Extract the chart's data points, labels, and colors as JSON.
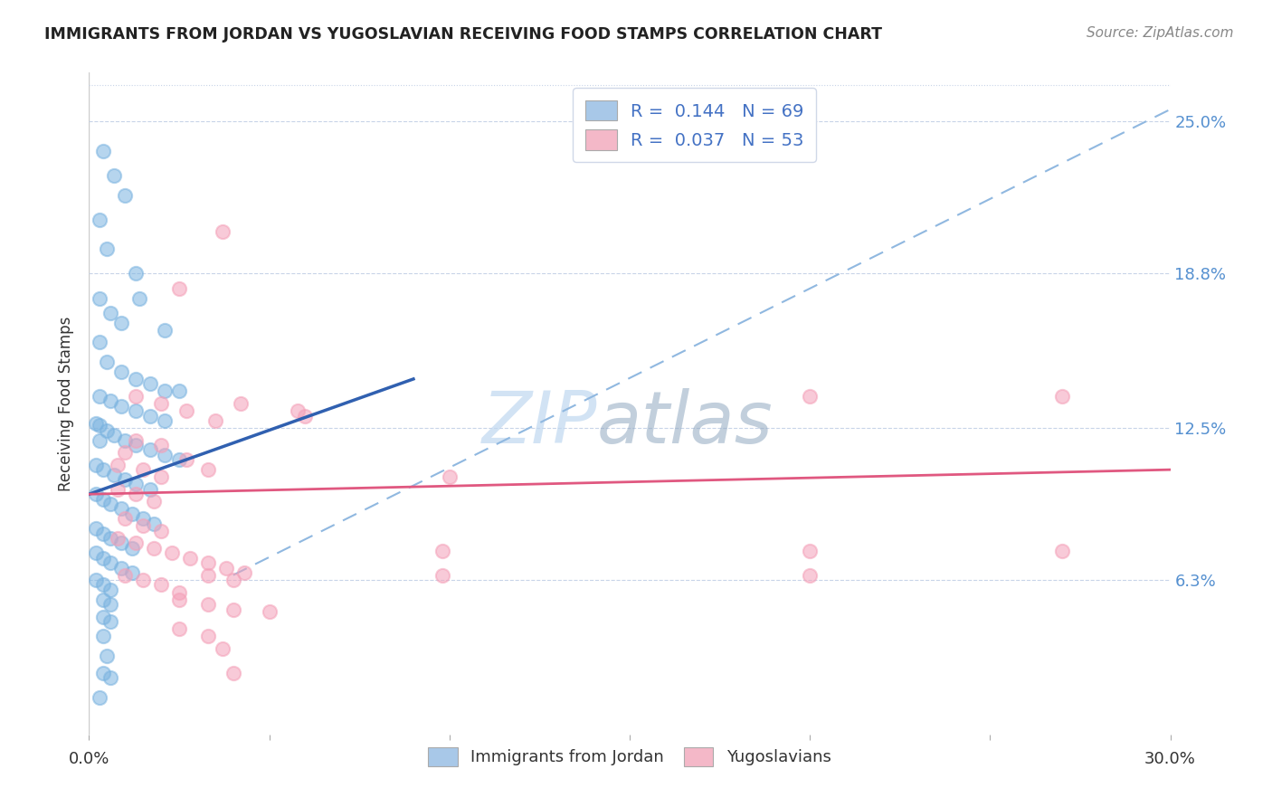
{
  "title": "IMMIGRANTS FROM JORDAN VS YUGOSLAVIAN RECEIVING FOOD STAMPS CORRELATION CHART",
  "source": "Source: ZipAtlas.com",
  "ylabel": "Receiving Food Stamps",
  "ytick_labels": [
    "25.0%",
    "18.8%",
    "12.5%",
    "6.3%"
  ],
  "ytick_values": [
    0.25,
    0.188,
    0.125,
    0.063
  ],
  "xlim": [
    0.0,
    0.3
  ],
  "ylim": [
    0.0,
    0.27
  ],
  "legend_entries": [
    {
      "label": "R =  0.144   N = 69",
      "color": "#a8c8e8"
    },
    {
      "label": "R =  0.037   N = 53",
      "color": "#f4b8c8"
    }
  ],
  "legend_labels_bottom": [
    "Immigrants from Jordan",
    "Yugoslavians"
  ],
  "watermark_zip": "ZIP",
  "watermark_atlas": "atlas",
  "jordan_color": "#7ab3e0",
  "yugoslavian_color": "#f4a0b8",
  "jordan_line_color": "#3060b0",
  "yugoslavian_line_color": "#e05880",
  "diagonal_line_color": "#90b8e0",
  "jordan_line": {
    "x0": 0.0,
    "y0": 0.098,
    "x1": 0.09,
    "y1": 0.145
  },
  "yugoslavian_line": {
    "x0": 0.0,
    "y0": 0.098,
    "x1": 0.3,
    "y1": 0.108
  },
  "diagonal_line": {
    "x0": 0.04,
    "y0": 0.065,
    "x1": 0.3,
    "y1": 0.255
  },
  "jordan_points": [
    [
      0.004,
      0.238
    ],
    [
      0.007,
      0.228
    ],
    [
      0.01,
      0.22
    ],
    [
      0.003,
      0.21
    ],
    [
      0.005,
      0.198
    ],
    [
      0.013,
      0.188
    ],
    [
      0.003,
      0.178
    ],
    [
      0.006,
      0.172
    ],
    [
      0.009,
      0.168
    ],
    [
      0.003,
      0.16
    ],
    [
      0.005,
      0.152
    ],
    [
      0.009,
      0.148
    ],
    [
      0.013,
      0.145
    ],
    [
      0.017,
      0.143
    ],
    [
      0.021,
      0.14
    ],
    [
      0.003,
      0.138
    ],
    [
      0.006,
      0.136
    ],
    [
      0.009,
      0.134
    ],
    [
      0.013,
      0.132
    ],
    [
      0.017,
      0.13
    ],
    [
      0.021,
      0.128
    ],
    [
      0.003,
      0.126
    ],
    [
      0.005,
      0.124
    ],
    [
      0.007,
      0.122
    ],
    [
      0.01,
      0.12
    ],
    [
      0.013,
      0.118
    ],
    [
      0.017,
      0.116
    ],
    [
      0.021,
      0.114
    ],
    [
      0.025,
      0.112
    ],
    [
      0.002,
      0.11
    ],
    [
      0.004,
      0.108
    ],
    [
      0.007,
      0.106
    ],
    [
      0.01,
      0.104
    ],
    [
      0.013,
      0.102
    ],
    [
      0.017,
      0.1
    ],
    [
      0.002,
      0.098
    ],
    [
      0.004,
      0.096
    ],
    [
      0.006,
      0.094
    ],
    [
      0.009,
      0.092
    ],
    [
      0.012,
      0.09
    ],
    [
      0.015,
      0.088
    ],
    [
      0.018,
      0.086
    ],
    [
      0.002,
      0.084
    ],
    [
      0.004,
      0.082
    ],
    [
      0.006,
      0.08
    ],
    [
      0.009,
      0.078
    ],
    [
      0.012,
      0.076
    ],
    [
      0.002,
      0.074
    ],
    [
      0.004,
      0.072
    ],
    [
      0.006,
      0.07
    ],
    [
      0.009,
      0.068
    ],
    [
      0.012,
      0.066
    ],
    [
      0.002,
      0.063
    ],
    [
      0.004,
      0.061
    ],
    [
      0.006,
      0.059
    ],
    [
      0.004,
      0.055
    ],
    [
      0.006,
      0.053
    ],
    [
      0.004,
      0.048
    ],
    [
      0.006,
      0.046
    ],
    [
      0.004,
      0.04
    ],
    [
      0.005,
      0.032
    ],
    [
      0.004,
      0.025
    ],
    [
      0.006,
      0.023
    ],
    [
      0.003,
      0.015
    ],
    [
      0.014,
      0.178
    ],
    [
      0.021,
      0.165
    ],
    [
      0.025,
      0.14
    ],
    [
      0.002,
      0.127
    ],
    [
      0.003,
      0.12
    ]
  ],
  "yugoslavian_points": [
    [
      0.037,
      0.205
    ],
    [
      0.025,
      0.182
    ],
    [
      0.013,
      0.138
    ],
    [
      0.02,
      0.135
    ],
    [
      0.027,
      0.132
    ],
    [
      0.035,
      0.128
    ],
    [
      0.042,
      0.135
    ],
    [
      0.058,
      0.132
    ],
    [
      0.013,
      0.12
    ],
    [
      0.02,
      0.118
    ],
    [
      0.01,
      0.115
    ],
    [
      0.008,
      0.11
    ],
    [
      0.015,
      0.108
    ],
    [
      0.02,
      0.105
    ],
    [
      0.027,
      0.112
    ],
    [
      0.033,
      0.108
    ],
    [
      0.06,
      0.13
    ],
    [
      0.008,
      0.1
    ],
    [
      0.013,
      0.098
    ],
    [
      0.018,
      0.095
    ],
    [
      0.01,
      0.088
    ],
    [
      0.015,
      0.085
    ],
    [
      0.02,
      0.083
    ],
    [
      0.008,
      0.08
    ],
    [
      0.013,
      0.078
    ],
    [
      0.018,
      0.076
    ],
    [
      0.023,
      0.074
    ],
    [
      0.028,
      0.072
    ],
    [
      0.033,
      0.07
    ],
    [
      0.038,
      0.068
    ],
    [
      0.043,
      0.066
    ],
    [
      0.01,
      0.065
    ],
    [
      0.015,
      0.063
    ],
    [
      0.02,
      0.061
    ],
    [
      0.025,
      0.058
    ],
    [
      0.033,
      0.065
    ],
    [
      0.04,
      0.063
    ],
    [
      0.025,
      0.055
    ],
    [
      0.033,
      0.053
    ],
    [
      0.04,
      0.051
    ],
    [
      0.05,
      0.05
    ],
    [
      0.025,
      0.043
    ],
    [
      0.033,
      0.04
    ],
    [
      0.037,
      0.035
    ],
    [
      0.04,
      0.025
    ],
    [
      0.098,
      0.075
    ],
    [
      0.1,
      0.105
    ],
    [
      0.2,
      0.138
    ],
    [
      0.27,
      0.138
    ],
    [
      0.2,
      0.075
    ],
    [
      0.27,
      0.075
    ],
    [
      0.2,
      0.065
    ],
    [
      0.098,
      0.065
    ]
  ]
}
